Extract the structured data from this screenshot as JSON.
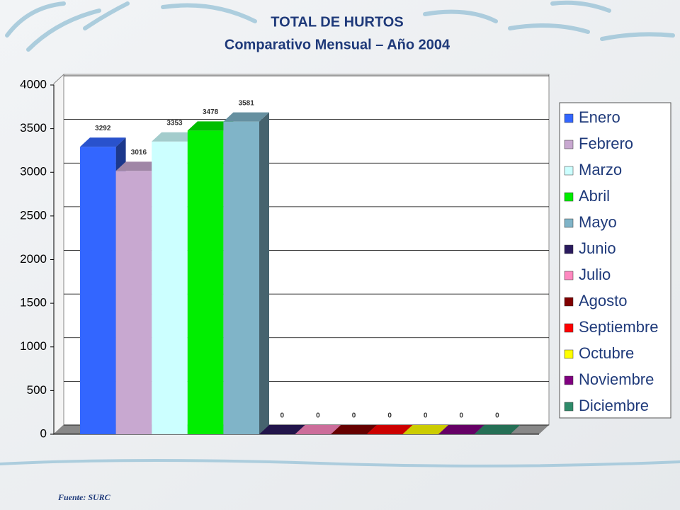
{
  "chart_data": {
    "type": "bar3d",
    "title": "TOTAL DE HURTOS",
    "subtitle": "Comparativo Mensual – Año 2004",
    "categories": [
      "Enero",
      "Febrero",
      "Marzo",
      "Abril",
      "Mayo",
      "Junio",
      "Julio",
      "Agosto",
      "Septiembre",
      "Octubre",
      "Noviembre",
      "Diciembre"
    ],
    "values": [
      3292,
      3016,
      3353,
      3478,
      3581,
      0,
      0,
      0,
      0,
      0,
      0,
      0
    ],
    "colors": [
      "#3366ff",
      "#c8a8d0",
      "#ccffff",
      "#00ee00",
      "#80b4c8",
      "#2a1a5e",
      "#ff88c0",
      "#800000",
      "#ff0000",
      "#ffff00",
      "#800080",
      "#2e8b6a"
    ],
    "ylim": [
      0,
      4000
    ],
    "yticks": [
      0,
      500,
      1000,
      1500,
      2000,
      2500,
      3000,
      3500,
      4000
    ],
    "grid": true,
    "legend": "right",
    "source": "Fuente: SURC"
  }
}
